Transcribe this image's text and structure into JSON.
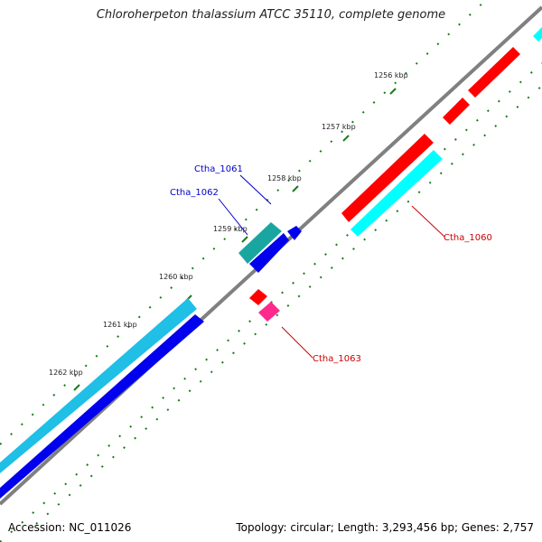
{
  "title": "Chloroherpeton thalassium ATCC 35110, complete genome",
  "footer": {
    "accession": "Accession: NC_011026",
    "summary": "Topology: circular; Length: 3,293,456 bp; Genes: 2,757"
  },
  "colors": {
    "backbone": "#808080",
    "tick": "#1b7a1b",
    "forward_gene": "#ff0000",
    "forward_cds": "#00ffff",
    "reverse_gene": "#0000ff",
    "reverse_cds": "#1fbfe6",
    "teal_feature": "#1aa6a0",
    "pink_feature": "#ff2a8c",
    "label_blue": "#0000cc",
    "label_red": "#cc0000"
  },
  "ticks": [
    "1256 kbp",
    "1257 kbp",
    "1258 kbp",
    "1259 kbp",
    "1260 kbp",
    "1261 kbp",
    "1262 kbp"
  ],
  "gene_labels": [
    "Ctha_1061",
    "Ctha_1062",
    "Ctha_1060",
    "Ctha_1063"
  ]
}
